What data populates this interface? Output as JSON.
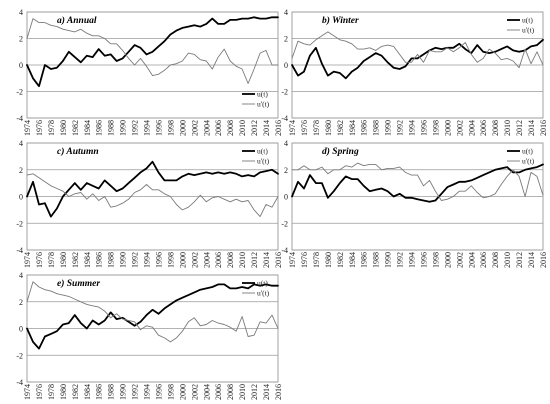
{
  "chart_data": [
    {
      "panel": "a",
      "title": "a) Annual",
      "type": "line",
      "x": [
        1974,
        1975,
        1976,
        1977,
        1978,
        1979,
        1980,
        1981,
        1982,
        1983,
        1984,
        1985,
        1986,
        1987,
        1988,
        1989,
        1990,
        1991,
        1992,
        1993,
        1994,
        1995,
        1996,
        1997,
        1998,
        1999,
        2000,
        2001,
        2002,
        2003,
        2004,
        2005,
        2006,
        2007,
        2008,
        2009,
        2010,
        2011,
        2012,
        2013,
        2014,
        2015,
        2016
      ],
      "ylim": [
        -4,
        4
      ],
      "yticks": [
        -4,
        -2,
        0,
        2,
        4
      ],
      "xticks": [
        1974,
        1976,
        1978,
        1980,
        1982,
        1984,
        1986,
        1988,
        1990,
        1992,
        1994,
        1996,
        1998,
        2000,
        2002,
        2004,
        2006,
        2008,
        2010,
        2012,
        2014,
        2016
      ],
      "legend_position": "bottom-right",
      "series": [
        {
          "name": "u(t)",
          "color": "#000000",
          "width": 1.8,
          "values": [
            0,
            -1.0,
            -1.6,
            0.0,
            -0.3,
            -0.2,
            0.3,
            1.0,
            0.6,
            0.2,
            0.7,
            0.6,
            1.2,
            0.7,
            0.8,
            0.3,
            0.5,
            1.0,
            1.5,
            1.3,
            0.8,
            1.0,
            1.4,
            1.8,
            2.3,
            2.6,
            2.8,
            2.9,
            3.0,
            2.9,
            3.1,
            3.5,
            3.1,
            3.1,
            3.4,
            3.4,
            3.5,
            3.5,
            3.6,
            3.5,
            3.5,
            3.6,
            3.6
          ]
        },
        {
          "name": "u'(t)",
          "color": "#7a7a7a",
          "width": 0.9,
          "values": [
            2.0,
            3.5,
            3.2,
            3.2,
            3.0,
            2.9,
            2.7,
            2.6,
            2.5,
            2.7,
            2.4,
            2.2,
            2.2,
            2.0,
            1.6,
            1.6,
            1.1,
            0.5,
            0.0,
            0.5,
            -0.1,
            -0.8,
            -0.7,
            -0.4,
            0.0,
            0.1,
            0.3,
            0.9,
            0.8,
            0.4,
            0.3,
            -0.3,
            0.6,
            1.2,
            0.3,
            -0.1,
            -0.3,
            -1.4,
            -0.3,
            0.9,
            1.1,
            0.0,
            0.0
          ]
        }
      ]
    },
    {
      "panel": "b",
      "title": "b) Winter",
      "type": "line",
      "x": [
        1974,
        1975,
        1976,
        1977,
        1978,
        1979,
        1980,
        1981,
        1982,
        1983,
        1984,
        1985,
        1986,
        1987,
        1988,
        1989,
        1990,
        1991,
        1992,
        1993,
        1994,
        1995,
        1996,
        1997,
        1998,
        1999,
        2000,
        2001,
        2002,
        2003,
        2004,
        2005,
        2006,
        2007,
        2008,
        2009,
        2010,
        2011,
        2012,
        2013,
        2014,
        2015,
        2016
      ],
      "ylim": [
        -4,
        4
      ],
      "yticks": [
        -4,
        -2,
        0,
        2,
        4
      ],
      "xticks": [
        1974,
        1976,
        1978,
        1980,
        1982,
        1984,
        1986,
        1988,
        1990,
        1992,
        1994,
        1996,
        1998,
        2000,
        2002,
        2004,
        2006,
        2008,
        2010,
        2012,
        2014,
        2016
      ],
      "legend_position": "top-right",
      "series": [
        {
          "name": "u(t)",
          "color": "#000000",
          "width": 1.8,
          "values": [
            0,
            -0.8,
            -0.5,
            0.7,
            1.3,
            0.1,
            -0.8,
            -0.5,
            -0.6,
            -1.0,
            -0.5,
            -0.2,
            0.3,
            0.6,
            0.9,
            0.7,
            0.2,
            -0.2,
            -0.3,
            -0.1,
            0.5,
            0.5,
            0.8,
            1.1,
            1.3,
            1.2,
            1.3,
            1.3,
            1.6,
            1.2,
            0.9,
            1.5,
            1.0,
            0.9,
            1.0,
            1.2,
            1.4,
            1.1,
            1.0,
            1.1,
            1.4,
            1.5,
            1.9
          ]
        },
        {
          "name": "u'(t)",
          "color": "#7a7a7a",
          "width": 0.9,
          "values": [
            0.5,
            1.8,
            1.6,
            1.5,
            1.9,
            2.2,
            2.5,
            2.2,
            1.9,
            1.8,
            1.6,
            1.2,
            1.2,
            1.3,
            1.1,
            1.4,
            1.5,
            1.4,
            0.8,
            0.2,
            0.2,
            0.8,
            0.2,
            1.1,
            1.0,
            1.0,
            1.3,
            1.0,
            1.3,
            1.7,
            0.8,
            0.2,
            0.5,
            1.2,
            0.9,
            0.4,
            0.5,
            0.3,
            -0.2,
            1.2,
            0.1,
            1.0,
            0.0
          ]
        }
      ]
    },
    {
      "panel": "c",
      "title": "c) Autumn",
      "type": "line",
      "x": [
        1974,
        1975,
        1976,
        1977,
        1978,
        1979,
        1980,
        1981,
        1982,
        1983,
        1984,
        1985,
        1986,
        1987,
        1988,
        1989,
        1990,
        1991,
        1992,
        1993,
        1994,
        1995,
        1996,
        1997,
        1998,
        1999,
        2000,
        2001,
        2002,
        2003,
        2004,
        2005,
        2006,
        2007,
        2008,
        2009,
        2010,
        2011,
        2012,
        2013,
        2014,
        2015,
        2016
      ],
      "ylim": [
        -4,
        4
      ],
      "yticks": [
        -4,
        -2,
        0,
        2,
        4
      ],
      "xticks": [
        1974,
        1976,
        1978,
        1980,
        1982,
        1984,
        1986,
        1988,
        1990,
        1992,
        1994,
        1996,
        1998,
        2000,
        2002,
        2004,
        2006,
        2008,
        2010,
        2012,
        2014,
        2016
      ],
      "legend_position": "top-right",
      "series": [
        {
          "name": "u(t)",
          "color": "#000000",
          "width": 1.8,
          "values": [
            0,
            1.1,
            -0.6,
            -0.5,
            -1.5,
            -0.9,
            0.0,
            0.5,
            1.0,
            0.5,
            1.0,
            0.8,
            0.6,
            1.2,
            0.8,
            0.4,
            0.6,
            1.0,
            1.4,
            1.8,
            2.1,
            2.6,
            1.8,
            1.2,
            1.2,
            1.2,
            1.5,
            1.7,
            1.6,
            1.7,
            1.8,
            1.7,
            1.8,
            1.7,
            1.8,
            1.7,
            1.5,
            1.6,
            1.5,
            1.8,
            1.9,
            2.0,
            1.7
          ]
        },
        {
          "name": "u'(t)",
          "color": "#7a7a7a",
          "width": 0.9,
          "values": [
            1.6,
            1.7,
            1.4,
            1.1,
            0.8,
            0.6,
            0.4,
            0.0,
            0.2,
            0.3,
            -0.2,
            0.2,
            -0.3,
            0.0,
            -0.8,
            -0.7,
            -0.5,
            -0.2,
            0.3,
            0.5,
            0.9,
            0.5,
            0.5,
            0.2,
            0.0,
            -0.6,
            -1.0,
            -0.8,
            -0.4,
            0.1,
            -0.4,
            -0.1,
            0.0,
            -0.2,
            -0.4,
            -0.2,
            -0.4,
            -0.3,
            -1.0,
            -1.5,
            -0.6,
            -0.8,
            0.0
          ]
        }
      ]
    },
    {
      "panel": "d",
      "title": "d) Spring",
      "type": "line",
      "x": [
        1974,
        1975,
        1976,
        1977,
        1978,
        1979,
        1980,
        1981,
        1982,
        1983,
        1984,
        1985,
        1986,
        1987,
        1988,
        1989,
        1990,
        1991,
        1992,
        1993,
        1994,
        1995,
        1996,
        1997,
        1998,
        1999,
        2000,
        2001,
        2002,
        2003,
        2004,
        2005,
        2006,
        2007,
        2008,
        2009,
        2010,
        2011,
        2012,
        2013,
        2014,
        2015,
        2016
      ],
      "ylim": [
        -4,
        4
      ],
      "yticks": [
        -4,
        -2,
        0,
        2,
        4
      ],
      "xticks": [
        1974,
        1976,
        1978,
        1980,
        1982,
        1984,
        1986,
        1988,
        1990,
        1992,
        1994,
        1996,
        1998,
        2000,
        2002,
        2004,
        2006,
        2008,
        2010,
        2012,
        2014,
        2016
      ],
      "legend_position": "top-right",
      "series": [
        {
          "name": "u(t)",
          "color": "#000000",
          "width": 1.8,
          "values": [
            0,
            1.1,
            0.6,
            1.6,
            1.0,
            1.0,
            -0.1,
            0.4,
            1.0,
            1.5,
            1.3,
            1.3,
            0.8,
            0.4,
            0.5,
            0.6,
            0.4,
            0.0,
            0.2,
            -0.1,
            -0.1,
            -0.2,
            -0.3,
            -0.4,
            -0.3,
            0.2,
            0.7,
            0.9,
            1.1,
            1.1,
            1.2,
            1.4,
            1.6,
            1.8,
            2.0,
            2.1,
            2.2,
            1.8,
            1.8,
            2.0,
            2.1,
            2.2,
            2.4
          ]
        },
        {
          "name": "u'(t)",
          "color": "#7a7a7a",
          "width": 0.9,
          "values": [
            2.0,
            2.0,
            2.3,
            2.0,
            2.0,
            2.2,
            1.7,
            2.0,
            2.0,
            2.3,
            2.2,
            2.5,
            2.3,
            2.4,
            2.4,
            2.0,
            2.1,
            2.1,
            2.2,
            1.8,
            1.6,
            1.6,
            0.8,
            1.2,
            0.4,
            -0.3,
            -0.2,
            0.0,
            0.4,
            0.4,
            0.8,
            0.3,
            -0.1,
            0.0,
            0.2,
            0.9,
            1.5,
            2.0,
            1.5,
            0.0,
            1.8,
            1.5,
            0.1
          ]
        }
      ]
    },
    {
      "panel": "e",
      "title": "e) Summer",
      "type": "line",
      "x": [
        1974,
        1975,
        1976,
        1977,
        1978,
        1979,
        1980,
        1981,
        1982,
        1983,
        1984,
        1985,
        1986,
        1987,
        1988,
        1989,
        1990,
        1991,
        1992,
        1993,
        1994,
        1995,
        1996,
        1997,
        1998,
        1999,
        2000,
        2001,
        2002,
        2003,
        2004,
        2005,
        2006,
        2007,
        2008,
        2009,
        2010,
        2011,
        2012,
        2013,
        2014,
        2015,
        2016
      ],
      "ylim": [
        -4,
        4
      ],
      "yticks": [
        -4,
        -2,
        0,
        2,
        4
      ],
      "xticks": [
        1974,
        1976,
        1978,
        1980,
        1982,
        1984,
        1986,
        1988,
        1990,
        1992,
        1994,
        1996,
        1998,
        2000,
        2002,
        2004,
        2006,
        2008,
        2010,
        2012,
        2014,
        2016
      ],
      "legend_position": "top-right",
      "series": [
        {
          "name": "u(t)",
          "color": "#000000",
          "width": 1.8,
          "values": [
            0,
            -1.0,
            -1.5,
            -0.6,
            -0.4,
            -0.2,
            0.3,
            0.4,
            1.0,
            0.4,
            0.0,
            0.6,
            0.3,
            0.6,
            1.2,
            0.7,
            0.8,
            0.5,
            0.2,
            0.5,
            1.0,
            1.4,
            1.1,
            1.5,
            1.8,
            2.1,
            2.3,
            2.5,
            2.7,
            2.9,
            3.0,
            3.1,
            3.3,
            3.3,
            3.0,
            3.0,
            3.1,
            3.0,
            3.3,
            3.2,
            3.3,
            3.2,
            3.2
          ]
        },
        {
          "name": "u'(t)",
          "color": "#7a7a7a",
          "width": 0.9,
          "values": [
            2.0,
            3.5,
            3.1,
            2.9,
            2.8,
            2.6,
            2.5,
            2.4,
            2.2,
            2.0,
            1.8,
            1.7,
            1.6,
            1.3,
            0.8,
            1.1,
            0.7,
            0.6,
            0.5,
            -0.1,
            0.2,
            0.1,
            -0.5,
            -0.7,
            -1.0,
            -0.7,
            -0.2,
            0.5,
            0.8,
            0.2,
            0.3,
            0.6,
            0.4,
            0.3,
            0.1,
            -0.2,
            0.9,
            -0.6,
            -0.5,
            0.5,
            0.4,
            1.0,
            0.0
          ]
        }
      ]
    }
  ]
}
